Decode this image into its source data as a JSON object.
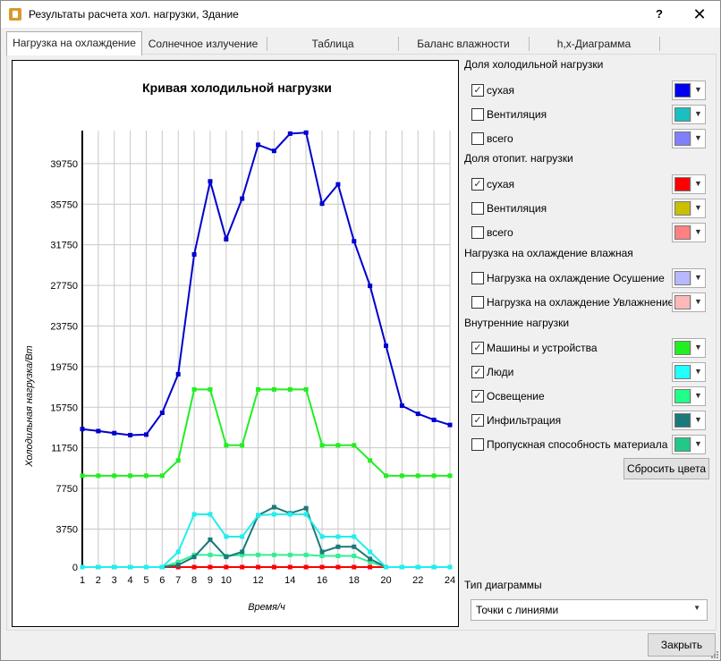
{
  "window": {
    "title": "Результаты расчета хол. нагрузки, Здание",
    "help": "?",
    "close": "✕"
  },
  "tabs": [
    {
      "label": "Нагрузка на охлаждение",
      "active": true
    },
    {
      "label": "Солнечное излучение",
      "active": false
    },
    {
      "label": "Таблица",
      "active": false
    },
    {
      "label": "Баланс влажности",
      "active": false
    },
    {
      "label": "h,x-Диаграмма",
      "active": false
    }
  ],
  "chart_data": {
    "type": "line",
    "title": "Кривая холодильной нагрузки",
    "xlabel": "Время/ч",
    "ylabel": "Холодильная нагрузка/Вт",
    "x": [
      1,
      2,
      3,
      4,
      5,
      6,
      7,
      8,
      9,
      10,
      11,
      12,
      13,
      14,
      15,
      16,
      17,
      18,
      19,
      20,
      21,
      22,
      23,
      24
    ],
    "x_ticks": [
      "1",
      "2",
      "3",
      "4",
      "5",
      "6",
      "7",
      "8",
      "9",
      "10",
      "12",
      "14",
      "16",
      "18",
      "20",
      "22",
      "24"
    ],
    "y_ticks": [
      "0",
      "3750",
      "7750",
      "11750",
      "15750",
      "19750",
      "23750",
      "27750",
      "31750",
      "35750",
      "39750"
    ],
    "ylim": [
      0,
      43000
    ],
    "grid": true,
    "legend": "none",
    "series": [
      {
        "color": "#0000cc",
        "values": [
          13600,
          13400,
          13200,
          13000,
          13050,
          15200,
          19000,
          30800,
          38000,
          32300,
          36300,
          41600,
          41000,
          42700,
          42800,
          35800,
          37700,
          32100,
          27700,
          21800,
          15900,
          15100,
          14500,
          14000
        ]
      },
      {
        "color": "#22ee22",
        "values": [
          9000,
          9000,
          9000,
          9000,
          9000,
          9000,
          10500,
          17500,
          17500,
          12000,
          12000,
          17500,
          17500,
          17500,
          17500,
          12000,
          12000,
          12000,
          10500,
          9000,
          9000,
          9000,
          9000,
          9000
        ]
      },
      {
        "color": "#22eeee",
        "values": [
          0,
          0,
          0,
          0,
          0,
          0,
          1500,
          5200,
          5200,
          3000,
          3000,
          5100,
          5200,
          5200,
          5200,
          3000,
          3000,
          3000,
          1500,
          0,
          0,
          0,
          0,
          0
        ]
      },
      {
        "color": "#1a7a7a",
        "values": [
          0,
          0,
          0,
          0,
          0,
          0,
          200,
          1000,
          2700,
          1000,
          1500,
          5100,
          5900,
          5300,
          5800,
          1500,
          2000,
          2000,
          800,
          0,
          0,
          0,
          0,
          0
        ]
      },
      {
        "color": "#33ee99",
        "values": [
          0,
          0,
          0,
          0,
          0,
          0,
          500,
          1200,
          1200,
          1100,
          1200,
          1200,
          1200,
          1200,
          1200,
          1100,
          1100,
          1100,
          500,
          0,
          0,
          0,
          0,
          0
        ]
      },
      {
        "color": "#ff0000",
        "values": [
          0,
          0,
          0,
          0,
          0,
          0,
          0,
          0,
          0,
          0,
          0,
          0,
          0,
          0,
          0,
          0,
          0,
          0,
          0,
          0,
          0,
          0,
          0,
          0
        ]
      }
    ]
  },
  "groups": [
    {
      "title": "Доля холодильной нагрузки",
      "items": [
        {
          "label": "сухая",
          "checked": true,
          "color": "#0000ee"
        },
        {
          "label": "Вентиляция",
          "checked": false,
          "color": "#18c0c0"
        },
        {
          "label": "всего",
          "checked": false,
          "color": "#8080ff"
        }
      ]
    },
    {
      "title": "Доля отопит. нагрузки",
      "items": [
        {
          "label": "сухая",
          "checked": true,
          "color": "#ff0000"
        },
        {
          "label": "Вентиляция",
          "checked": false,
          "color": "#c8c000"
        },
        {
          "label": "всего",
          "checked": false,
          "color": "#ff8080"
        }
      ]
    },
    {
      "title": "Нагрузка на охлаждение влажная",
      "items": [
        {
          "label": "Нагрузка на охлаждение Осушение",
          "checked": false,
          "color": "#b8b8ff"
        },
        {
          "label": "Нагрузка на охлаждение Увлажнение",
          "checked": false,
          "color": "#ffb8b8"
        }
      ]
    },
    {
      "title": "Внутренние нагрузки",
      "items": [
        {
          "label": "Машины и устройства",
          "checked": true,
          "color": "#22ee22"
        },
        {
          "label": "Люди",
          "checked": true,
          "color": "#22ffff"
        },
        {
          "label": "Освещение",
          "checked": true,
          "color": "#22ff88"
        },
        {
          "label": "Инфильтрация",
          "checked": true,
          "color": "#1a7a7a"
        },
        {
          "label": "Пропускная способность материала",
          "checked": false,
          "color": "#22c888"
        }
      ]
    }
  ],
  "reset_button": "Сбросить цвета",
  "chart_type": {
    "label": "Тип диаграммы",
    "value": "Точки с линиями"
  },
  "close_button": "Закрыть"
}
